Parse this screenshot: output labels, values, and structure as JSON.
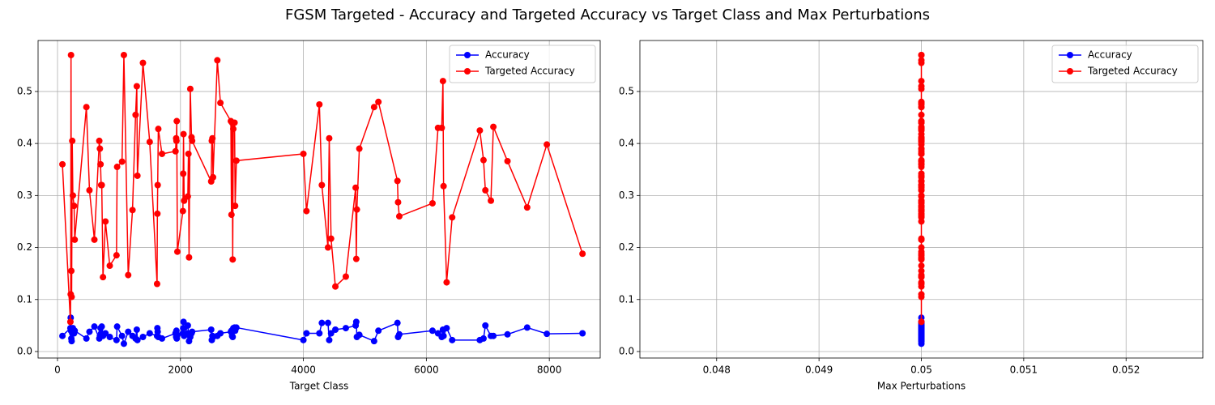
{
  "title": "FGSM Targeted - Accuracy and Targeted Accuracy vs Target Class and Max Perturbations",
  "chart_data": [
    {
      "type": "line",
      "xlabel": "Target Class",
      "grid": true,
      "legend": "upper right",
      "x": [
        80,
        210,
        215,
        220,
        225,
        230,
        240,
        250,
        270,
        280,
        470,
        520,
        600,
        680,
        690,
        700,
        710,
        720,
        740,
        780,
        850,
        960,
        970,
        1050,
        1080,
        1150,
        1220,
        1270,
        1290,
        1300,
        1390,
        1500,
        1620,
        1625,
        1630,
        1640,
        1700,
        1920,
        1930,
        1935,
        1940,
        1950,
        2040,
        2045,
        2050,
        2060,
        2120,
        2130,
        2140,
        2160,
        2180,
        2190,
        2500,
        2510,
        2520,
        2530,
        2600,
        2650,
        2820,
        2830,
        2840,
        2850,
        2860,
        2880,
        2890,
        2910,
        4000,
        4050,
        4260,
        4300,
        4400,
        4420,
        4450,
        4520,
        4690,
        4850,
        4860,
        4870,
        4910,
        5150,
        5220,
        5530,
        5540,
        5560,
        6100,
        6190,
        6250,
        6270,
        6280,
        6330,
        6420,
        6870,
        6930,
        6960,
        7050,
        7090,
        7320,
        7640,
        7960,
        8540
      ],
      "series": [
        {
          "name": "Accuracy",
          "color": "#0000ff",
          "values": [
            0.03,
            0.045,
            0.065,
            0.04,
            0.025,
            0.02,
            0.035,
            0.045,
            0.035,
            0.04,
            0.025,
            0.038,
            0.048,
            0.025,
            0.03,
            0.045,
            0.035,
            0.048,
            0.03,
            0.035,
            0.028,
            0.022,
            0.048,
            0.03,
            0.015,
            0.038,
            0.03,
            0.025,
            0.042,
            0.022,
            0.028,
            0.035,
            0.03,
            0.045,
            0.038,
            0.028,
            0.025,
            0.035,
            0.028,
            0.04,
            0.025,
            0.032,
            0.035,
            0.045,
            0.057,
            0.03,
            0.05,
            0.035,
            0.02,
            0.028,
            0.035,
            0.038,
            0.042,
            0.022,
            0.03,
            0.028,
            0.03,
            0.035,
            0.038,
            0.04,
            0.03,
            0.028,
            0.045,
            0.046,
            0.04,
            0.046,
            0.022,
            0.035,
            0.035,
            0.055,
            0.055,
            0.022,
            0.035,
            0.042,
            0.045,
            0.05,
            0.057,
            0.028,
            0.032,
            0.02,
            0.04,
            0.055,
            0.028,
            0.033,
            0.04,
            0.035,
            0.028,
            0.042,
            0.03,
            0.045,
            0.022,
            0.022,
            0.025,
            0.05,
            0.03,
            0.03,
            0.033,
            0.046,
            0.034,
            0.035
          ]
        },
        {
          "name": "Targeted Accuracy",
          "color": "#ff0000",
          "values": [
            0.36,
            0.057,
            0.11,
            0.57,
            0.155,
            0.105,
            0.405,
            0.3,
            0.28,
            0.215,
            0.47,
            0.31,
            0.215,
            0.405,
            0.39,
            0.36,
            0.32,
            0.32,
            0.143,
            0.25,
            0.165,
            0.185,
            0.355,
            0.365,
            0.57,
            0.147,
            0.272,
            0.455,
            0.51,
            0.338,
            0.555,
            0.403,
            0.13,
            0.265,
            0.32,
            0.428,
            0.38,
            0.385,
            0.41,
            0.405,
            0.443,
            0.192,
            0.27,
            0.342,
            0.418,
            0.29,
            0.298,
            0.38,
            0.181,
            0.505,
            0.412,
            0.405,
            0.327,
            0.405,
            0.41,
            0.335,
            0.56,
            0.478,
            0.443,
            0.263,
            0.44,
            0.177,
            0.428,
            0.44,
            0.28,
            0.367,
            0.38,
            0.27,
            0.475,
            0.32,
            0.2,
            0.41,
            0.217,
            0.125,
            0.144,
            0.315,
            0.178,
            0.273,
            0.39,
            0.47,
            0.48,
            0.328,
            0.287,
            0.26,
            0.285,
            0.43,
            0.43,
            0.52,
            0.318,
            0.133,
            0.258,
            0.425,
            0.368,
            0.31,
            0.29,
            0.432,
            0.366,
            0.277,
            0.398,
            0.188
          ]
        }
      ],
      "xlim": [
        -316,
        8828
      ],
      "ylim": [
        -0.0125,
        0.598
      ],
      "xticks": [
        0,
        2000,
        4000,
        6000,
        8000
      ],
      "yticks": [
        {
          "value": 0,
          "label": "0.0"
        },
        0.1,
        0.2,
        0.3,
        0.4,
        0.5
      ]
    },
    {
      "type": "line",
      "xlabel": "Max Perturbations",
      "grid": true,
      "legend": "upper right",
      "x": [
        0.05,
        0.05,
        0.05,
        0.05,
        0.05,
        0.05,
        0.05,
        0.05,
        0.05,
        0.05,
        0.05,
        0.05,
        0.05,
        0.05,
        0.05,
        0.05,
        0.05,
        0.05,
        0.05,
        0.05,
        0.05,
        0.05,
        0.05,
        0.05,
        0.05,
        0.05,
        0.05,
        0.05,
        0.05,
        0.05,
        0.05,
        0.05,
        0.05,
        0.05,
        0.05,
        0.05,
        0.05,
        0.05,
        0.05,
        0.05,
        0.05,
        0.05,
        0.05,
        0.05,
        0.05,
        0.05,
        0.05,
        0.05,
        0.05,
        0.05,
        0.05,
        0.05,
        0.05,
        0.05,
        0.05,
        0.05,
        0.05,
        0.05,
        0.05,
        0.05,
        0.05,
        0.05,
        0.05,
        0.05,
        0.05,
        0.05,
        0.05,
        0.05,
        0.05,
        0.05,
        0.05,
        0.05,
        0.05,
        0.05,
        0.05,
        0.05,
        0.05,
        0.05,
        0.05,
        0.05,
        0.05,
        0.05,
        0.05,
        0.05,
        0.05,
        0.05,
        0.05,
        0.05,
        0.05,
        0.05,
        0.05,
        0.05,
        0.05,
        0.05,
        0.05,
        0.05,
        0.05,
        0.05,
        0.05,
        0.05
      ],
      "series": [
        {
          "name": "Accuracy",
          "color": "#0000ff",
          "values": [
            0.03,
            0.045,
            0.065,
            0.04,
            0.025,
            0.02,
            0.035,
            0.045,
            0.035,
            0.04,
            0.025,
            0.038,
            0.048,
            0.025,
            0.03,
            0.045,
            0.035,
            0.048,
            0.03,
            0.035,
            0.028,
            0.022,
            0.048,
            0.03,
            0.015,
            0.038,
            0.03,
            0.025,
            0.042,
            0.022,
            0.028,
            0.035,
            0.03,
            0.045,
            0.038,
            0.028,
            0.025,
            0.035,
            0.028,
            0.04,
            0.025,
            0.032,
            0.035,
            0.045,
            0.057,
            0.03,
            0.05,
            0.035,
            0.02,
            0.028,
            0.035,
            0.038,
            0.042,
            0.022,
            0.03,
            0.028,
            0.03,
            0.035,
            0.038,
            0.04,
            0.03,
            0.028,
            0.045,
            0.046,
            0.04,
            0.046,
            0.022,
            0.035,
            0.035,
            0.055,
            0.055,
            0.022,
            0.035,
            0.042,
            0.045,
            0.05,
            0.057,
            0.028,
            0.032,
            0.02,
            0.04,
            0.055,
            0.028,
            0.033,
            0.04,
            0.035,
            0.028,
            0.042,
            0.03,
            0.045,
            0.022,
            0.022,
            0.025,
            0.05,
            0.03,
            0.03,
            0.033,
            0.046,
            0.034,
            0.035
          ]
        },
        {
          "name": "Targeted Accuracy",
          "color": "#ff0000",
          "values": [
            0.36,
            0.057,
            0.11,
            0.57,
            0.155,
            0.105,
            0.405,
            0.3,
            0.28,
            0.215,
            0.47,
            0.31,
            0.215,
            0.405,
            0.39,
            0.36,
            0.32,
            0.32,
            0.143,
            0.25,
            0.165,
            0.185,
            0.355,
            0.365,
            0.57,
            0.147,
            0.272,
            0.455,
            0.51,
            0.338,
            0.555,
            0.403,
            0.13,
            0.265,
            0.32,
            0.428,
            0.38,
            0.385,
            0.41,
            0.405,
            0.443,
            0.192,
            0.27,
            0.342,
            0.418,
            0.29,
            0.298,
            0.38,
            0.181,
            0.505,
            0.412,
            0.405,
            0.327,
            0.405,
            0.41,
            0.335,
            0.56,
            0.478,
            0.443,
            0.263,
            0.44,
            0.177,
            0.428,
            0.44,
            0.28,
            0.367,
            0.38,
            0.27,
            0.475,
            0.32,
            0.2,
            0.41,
            0.217,
            0.125,
            0.144,
            0.315,
            0.178,
            0.273,
            0.39,
            0.47,
            0.48,
            0.328,
            0.287,
            0.26,
            0.285,
            0.43,
            0.43,
            0.52,
            0.318,
            0.133,
            0.258,
            0.425,
            0.368,
            0.31,
            0.29,
            0.432,
            0.366,
            0.277,
            0.398,
            0.188
          ]
        }
      ],
      "xlim": [
        0.04725,
        0.05275
      ],
      "ylim": [
        -0.0125,
        0.598
      ],
      "xticks": [
        0.048,
        0.049,
        0.05,
        0.051,
        0.052
      ],
      "yticks": [
        {
          "value": 0,
          "label": "0.0"
        },
        0.1,
        0.2,
        0.3,
        0.4,
        0.5
      ]
    }
  ]
}
